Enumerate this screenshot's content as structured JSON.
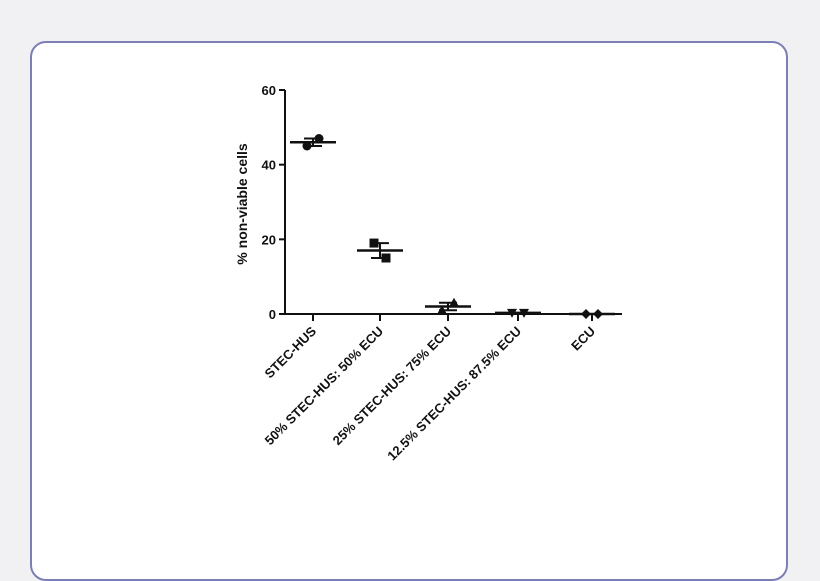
{
  "colors": {
    "page_bg": "#f1f1f3",
    "card_border": "#7b7fb5",
    "ink": "#111111"
  },
  "chart_data": {
    "type": "scatter",
    "ylabel": "% non-viable cells",
    "ylim": [
      0,
      60
    ],
    "yticks": [
      0,
      20,
      40,
      60
    ],
    "grid": false,
    "categories": [
      "STEC-HUS",
      "50% STEC-HUS: 50% ECU",
      "25% STEC-HUS: 75% ECU",
      "12.5% STEC-HUS: 87.5% ECU",
      "ECU"
    ],
    "groups": [
      {
        "marker": "circle",
        "points": [
          45.0,
          47.0
        ],
        "mean": 46.0,
        "error": [
          45.0,
          47.0
        ]
      },
      {
        "marker": "square",
        "points": [
          19.0,
          15.0
        ],
        "mean": 17.0,
        "error": [
          15.0,
          19.0
        ]
      },
      {
        "marker": "triangle-up",
        "points": [
          1.0,
          3.0
        ],
        "mean": 2.0,
        "error": [
          1.0,
          3.0
        ]
      },
      {
        "marker": "triangle-down",
        "points": [
          0.3,
          0.3
        ],
        "mean": 0.3,
        "error": [
          0.3,
          0.3
        ]
      },
      {
        "marker": "diamond",
        "points": [
          0.0,
          0.0
        ],
        "mean": 0.0,
        "error": [
          0.0,
          0.0
        ]
      }
    ]
  }
}
